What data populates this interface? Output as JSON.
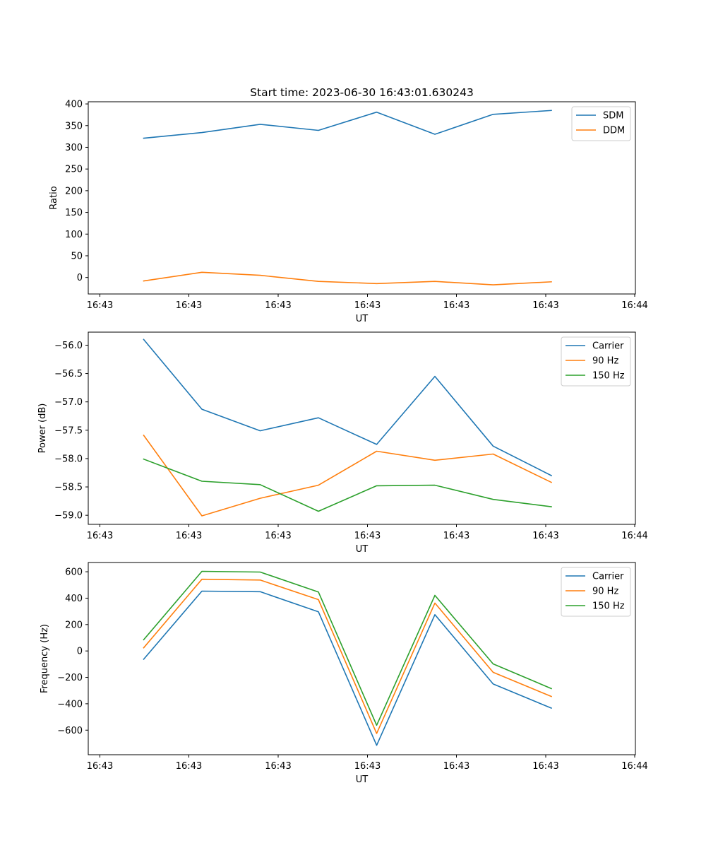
{
  "figure_title": "Start time: 2023-06-30 16:43:01.630243",
  "colors": {
    "blue": "#1f77b4",
    "orange": "#ff7f0e",
    "green": "#2ca02c"
  },
  "chart_data": [
    {
      "type": "line",
      "xlabel": "UT",
      "ylabel": "Ratio",
      "x_tick_labels": [
        "16:43",
        "16:43",
        "16:43",
        "16:43",
        "16:43",
        "16:43",
        "16:44"
      ],
      "y_ticks": [
        0,
        50,
        100,
        150,
        200,
        250,
        300,
        350,
        400
      ],
      "y_tick_labels": [
        "0",
        "50",
        "100",
        "150",
        "200",
        "250",
        "300",
        "350",
        "400"
      ],
      "ylim": [
        -38,
        405
      ],
      "grid": false,
      "legend_position": "top-right",
      "series": [
        {
          "name": "SDM",
          "color": "#1f77b4",
          "values": [
            321,
            334,
            353,
            339,
            381,
            330,
            376,
            385
          ]
        },
        {
          "name": "DDM",
          "color": "#ff7f0e",
          "values": [
            -8,
            12,
            5,
            -9,
            -14,
            -9,
            -17,
            -10
          ]
        }
      ]
    },
    {
      "type": "line",
      "xlabel": "UT",
      "ylabel": "Power (dB)",
      "x_tick_labels": [
        "16:43",
        "16:43",
        "16:43",
        "16:43",
        "16:43",
        "16:43",
        "16:44"
      ],
      "y_ticks": [
        -59.0,
        -58.5,
        -58.0,
        -57.5,
        -57.0,
        -56.5,
        -56.0
      ],
      "y_tick_labels": [
        "−59.0",
        "−58.5",
        "−58.0",
        "−57.5",
        "−57.0",
        "−56.5",
        "−56.0"
      ],
      "ylim": [
        -59.16,
        -55.77
      ],
      "grid": false,
      "legend_position": "top-right",
      "series": [
        {
          "name": "Carrier",
          "color": "#1f77b4",
          "values": [
            -55.9,
            -57.13,
            -57.51,
            -57.28,
            -57.75,
            -56.55,
            -57.78,
            -58.3
          ]
        },
        {
          "name": "90 Hz",
          "color": "#ff7f0e",
          "values": [
            -57.59,
            -59.01,
            -58.7,
            -58.47,
            -57.87,
            -58.03,
            -57.92,
            -58.42
          ]
        },
        {
          "name": "150 Hz",
          "color": "#2ca02c",
          "values": [
            -58.01,
            -58.4,
            -58.46,
            -58.93,
            -58.48,
            -58.47,
            -58.72,
            -58.85
          ]
        }
      ]
    },
    {
      "type": "line",
      "xlabel": "UT",
      "ylabel": "Frequency (Hz)",
      "x_tick_labels": [
        "16:43",
        "16:43",
        "16:43",
        "16:43",
        "16:43",
        "16:43",
        "16:44"
      ],
      "y_ticks": [
        -600,
        -400,
        -200,
        0,
        200,
        400,
        600
      ],
      "y_tick_labels": [
        "−600",
        "−400",
        "−200",
        "0",
        "200",
        "400",
        "600"
      ],
      "ylim": [
        -786,
        670
      ],
      "grid": false,
      "legend_position": "top-right",
      "series": [
        {
          "name": "Carrier",
          "color": "#1f77b4",
          "values": [
            -63,
            453,
            449,
            297,
            -715,
            275,
            -250,
            -433
          ]
        },
        {
          "name": "90 Hz",
          "color": "#ff7f0e",
          "values": [
            24,
            543,
            537,
            389,
            -625,
            363,
            -162,
            -345
          ]
        },
        {
          "name": "150 Hz",
          "color": "#2ca02c",
          "values": [
            85,
            603,
            598,
            447,
            -563,
            421,
            -98,
            -285
          ]
        }
      ]
    }
  ]
}
